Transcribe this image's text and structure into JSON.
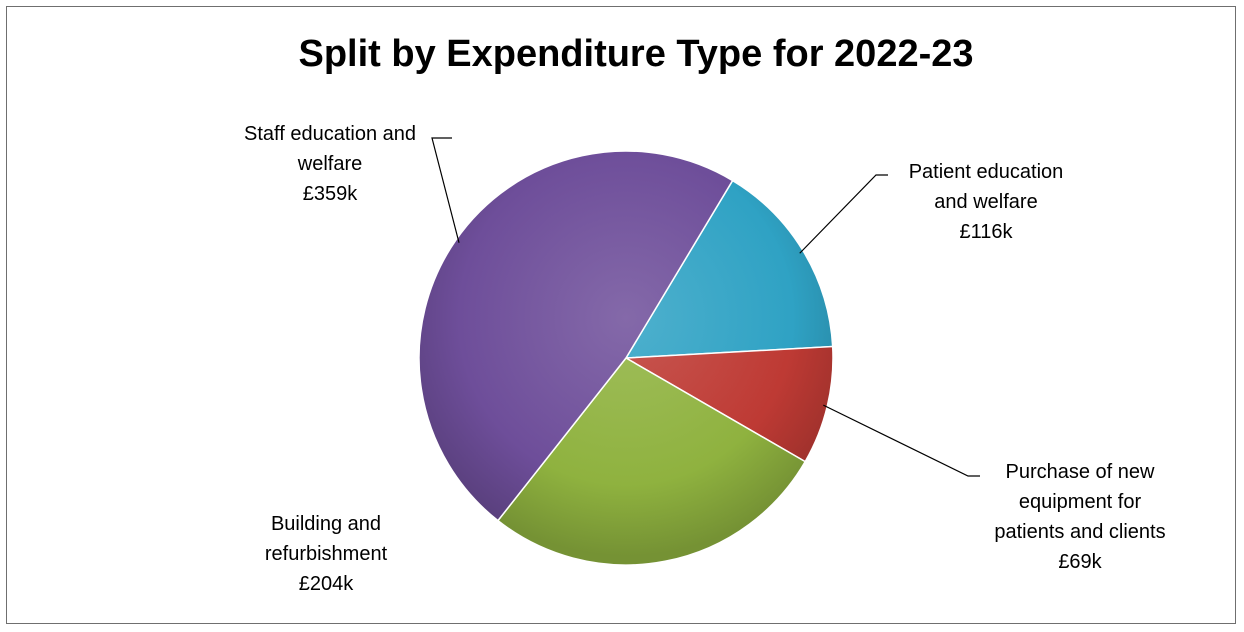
{
  "chart_data": {
    "type": "pie",
    "title": "Split by Expenditure Type for 2022-23",
    "slices": [
      {
        "name": "Patient education and welfare",
        "value": 116,
        "display": "£116k",
        "label_lines": [
          "Patient education",
          "and welfare"
        ],
        "color": "#2fa2c4",
        "label_pos": "upper-right"
      },
      {
        "name": "Purchase of new equipment for patients and clients",
        "value": 69,
        "display": "£69k",
        "label_lines": [
          "Purchase of new",
          "equipment for",
          "patients and clients"
        ],
        "color": "#be3a34",
        "label_pos": "lower-right"
      },
      {
        "name": "Building and refurbishment",
        "value": 204,
        "display": "£204k",
        "label_lines": [
          "Building and",
          "refurbishment"
        ],
        "color": "#8fb23f",
        "label_pos": "lower-left"
      },
      {
        "name": "Staff education and welfare",
        "value": 359,
        "display": "£359k",
        "label_lines": [
          "Staff education and",
          "welfare"
        ],
        "color": "#6e4e9a",
        "label_pos": "upper-left"
      }
    ]
  }
}
